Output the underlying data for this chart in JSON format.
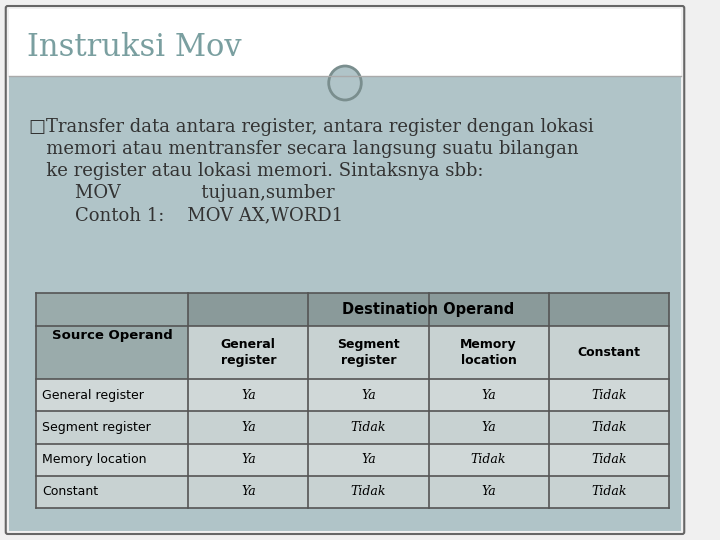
{
  "title": "Instruksi Mov",
  "title_color": "#7a9fa0",
  "title_fontsize": 22,
  "bg_color": "#b0c4c8",
  "slide_bg": "#f0f0f0",
  "border_color": "#666666",
  "bullet_lines": [
    "□Transfer data antara register, antara register dengan lokasi",
    "   memori atau mentransfer secara langsung suatu bilangan",
    "   ke register atau lokasi memori. Sintaksnya sbb:",
    "        MOV              tujuan,sumber",
    "        Contoh 1:    MOV AX,WORD1"
  ],
  "text_color": "#333333",
  "text_fontsize": 13,
  "table_row_bg1": "#d0d8d8",
  "table_row_bg2": "#c8d2d2",
  "table_border": "#555555",
  "source_col_bg": "#9aabab",
  "dest_header_bg": "#8a9a9a",
  "sub_header_bg": "#c8d2d2",
  "col_headers": [
    "General\nregister",
    "Segment\nregister",
    "Memory\nlocation",
    "Constant"
  ],
  "row_headers": [
    "General register",
    "Segment register",
    "Memory location",
    "Constant"
  ],
  "table_data": [
    [
      "Ya",
      "Ya",
      "Ya",
      "Tidak"
    ],
    [
      "Ya",
      "Tidak",
      "Ya",
      "Tidak"
    ],
    [
      "Ya",
      "Ya",
      "Tidak",
      "Tidak"
    ],
    [
      "Ya",
      "Tidak",
      "Ya",
      "Tidak"
    ]
  ],
  "circle_color": "#8a9a9a",
  "divider_color": "#aaaaaa"
}
